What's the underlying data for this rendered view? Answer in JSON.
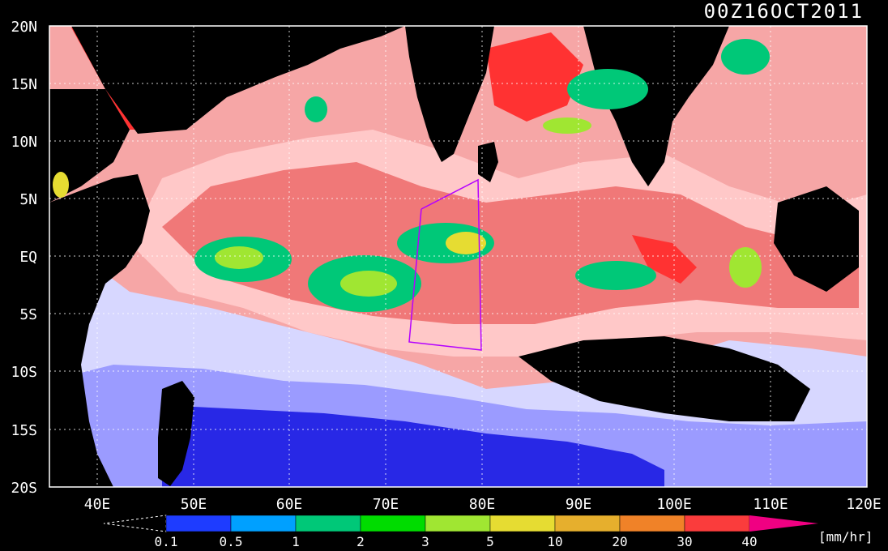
{
  "title": "00Z16OCT2011",
  "lat_labels": [
    "20N",
    "15N",
    "10N",
    "5N",
    "EQ",
    "5S",
    "10S",
    "15S",
    "20S"
  ],
  "lon_labels": [
    "40E",
    "50E",
    "60E",
    "70E",
    "80E",
    "90E",
    "100E",
    "110E",
    "120E"
  ],
  "colorbar": {
    "ticks": [
      "0.1",
      "0.5",
      "1",
      "2",
      "3",
      "5",
      "10",
      "20",
      "30",
      "40"
    ],
    "unit": "[mm/hr]",
    "colors": [
      "#1e3cff",
      "#00a0ff",
      "#00c878",
      "#00dc00",
      "#a0e632",
      "#e6dc32",
      "#e6af2d",
      "#f08228",
      "#fa3c3c",
      "#f00082"
    ]
  },
  "palette": {
    "land": "#000000",
    "ocean_light": "#d7d7ff",
    "ocean_mid": "#9b9bff",
    "ocean_deep": "#2828e6",
    "rain_light": "#ffc8c8",
    "rain_mid": "#f07878",
    "rain_heavy": "#ff3232"
  }
}
